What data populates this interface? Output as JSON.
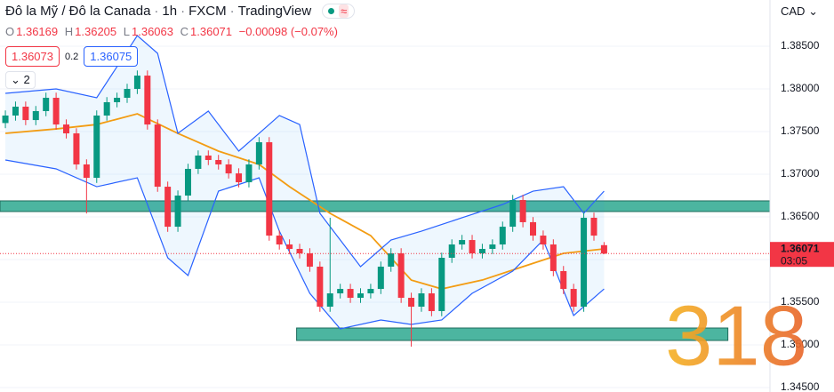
{
  "chart_data": {
    "type": "candlestick",
    "header": {
      "symbol": "Đô la Mỹ / Đô la Canada",
      "interval": "1h",
      "source": "FXCM",
      "platform": "TradingView",
      "badge": "≈",
      "ohlc_labels": [
        "O",
        "H",
        "L",
        "C"
      ],
      "change": "−0.00098 (−0.07%)",
      "sell": "1.36073",
      "spread": "0.2",
      "buy": "1.36075",
      "indicators": "2"
    },
    "currency": "CAD",
    "countdown": "03:05",
    "watermark": "318",
    "xlim": [
      -0.53,
      75.35
    ],
    "ylim": [
      1.34448,
      1.39042
    ],
    "yticks": [
      {
        "value": 1.385,
        "label": "1.38500"
      },
      {
        "value": 1.38,
        "label": "1.38000"
      },
      {
        "value": 1.375,
        "label": "1.37500"
      },
      {
        "value": 1.37,
        "label": "1.37000"
      },
      {
        "value": 1.365,
        "label": "1.36500"
      },
      {
        "value": 1.36,
        "label": "1.36000"
      },
      {
        "value": 1.355,
        "label": "1.35500"
      },
      {
        "value": 1.35,
        "label": "1.35000"
      },
      {
        "value": 1.345,
        "label": "1.34500"
      }
    ],
    "up_color": "#089981",
    "down_color": "#f23645",
    "series": [
      {
        "name": "USDCAD",
        "open": [
          1.376,
          1.37688,
          1.37792,
          1.37635,
          1.3774,
          1.37896,
          1.37583,
          1.37479,
          1.37115,
          1.36958,
          1.37688,
          1.37844,
          1.37896,
          1.38,
          1.38156,
          1.37583,
          1.36854,
          1.36385,
          1.3675,
          1.37063,
          1.37219,
          1.37167,
          1.37115,
          1.3701,
          1.36906,
          1.37115,
          1.37375,
          1.36281,
          1.36177,
          1.36125,
          1.36073,
          1.35917,
          1.35448,
          1.35604,
          1.35656,
          1.35552,
          1.35604,
          1.35656,
          1.35917,
          1.36073,
          1.35552,
          1.35448,
          1.35604,
          1.35396,
          1.36021,
          1.36177,
          1.36229,
          1.36073,
          1.36125,
          1.36177,
          1.36385,
          1.36698,
          1.36438,
          1.36281,
          1.36177,
          1.35865,
          1.35656,
          1.35448,
          1.3649,
          1.36169
        ],
        "high": [
          1.37748,
          1.37852,
          1.37852,
          1.378,
          1.37956,
          1.37956,
          1.37643,
          1.37539,
          1.37175,
          1.37748,
          1.37904,
          1.37956,
          1.3806,
          1.38216,
          1.38216,
          1.37643,
          1.36914,
          1.3681,
          1.37123,
          1.37279,
          1.37279,
          1.37227,
          1.37175,
          1.3707,
          1.37175,
          1.37435,
          1.37435,
          1.36341,
          1.36237,
          1.36185,
          1.36133,
          1.35977,
          1.3649,
          1.35716,
          1.35716,
          1.35664,
          1.35716,
          1.35977,
          1.36133,
          1.36133,
          1.35612,
          1.35664,
          1.35664,
          1.36081,
          1.36237,
          1.36289,
          1.36289,
          1.36185,
          1.36237,
          1.36445,
          1.36758,
          1.36758,
          1.36498,
          1.36341,
          1.36237,
          1.35925,
          1.35716,
          1.3655,
          1.3655,
          1.36205
        ],
        "low": [
          1.3754,
          1.37628,
          1.37575,
          1.37575,
          1.3768,
          1.37523,
          1.37419,
          1.37055,
          1.3654,
          1.36898,
          1.37628,
          1.37784,
          1.37836,
          1.3794,
          1.37523,
          1.36794,
          1.36325,
          1.36325,
          1.3669,
          1.37003,
          1.37107,
          1.37055,
          1.3695,
          1.36846,
          1.36846,
          1.37055,
          1.36221,
          1.36117,
          1.36065,
          1.36013,
          1.35857,
          1.35388,
          1.35388,
          1.35544,
          1.35492,
          1.35492,
          1.35544,
          1.35596,
          1.35857,
          1.35492,
          1.3498,
          1.35388,
          1.35336,
          1.35336,
          1.35961,
          1.36117,
          1.36013,
          1.36013,
          1.36065,
          1.36117,
          1.36325,
          1.36378,
          1.36221,
          1.36117,
          1.35805,
          1.35596,
          1.35388,
          1.35388,
          1.36221,
          1.36063
        ],
        "close": [
          1.37688,
          1.37792,
          1.37635,
          1.3774,
          1.37896,
          1.37583,
          1.37479,
          1.37115,
          1.36958,
          1.37688,
          1.37844,
          1.37896,
          1.38,
          1.38156,
          1.37583,
          1.36854,
          1.36385,
          1.3675,
          1.37063,
          1.37219,
          1.37167,
          1.37115,
          1.3701,
          1.36906,
          1.37115,
          1.37375,
          1.36281,
          1.36177,
          1.36125,
          1.36073,
          1.35917,
          1.35448,
          1.35604,
          1.35656,
          1.35552,
          1.35604,
          1.35656,
          1.35917,
          1.36073,
          1.35552,
          1.35448,
          1.35604,
          1.35396,
          1.36021,
          1.36177,
          1.36229,
          1.36073,
          1.36125,
          1.36177,
          1.36385,
          1.36698,
          1.36438,
          1.36281,
          1.36177,
          1.35865,
          1.35656,
          1.35448,
          1.3649,
          1.36281,
          1.36071
        ]
      }
    ],
    "lines": [
      {
        "color": "#f39c12",
        "x": [
          0,
          5,
          9,
          13,
          17,
          21,
          25,
          28,
          32,
          36,
          40,
          43,
          47,
          51,
          55,
          59
        ],
        "values": [
          1.37479,
          1.37531,
          1.37583,
          1.37708,
          1.37479,
          1.37271,
          1.37115,
          1.36854,
          1.36542,
          1.36281,
          1.3576,
          1.35656,
          1.3576,
          1.35917,
          1.36073,
          1.36125
        ]
      },
      {
        "color": "#2962ff",
        "x": [
          0,
          5,
          9,
          13,
          15,
          17,
          20,
          23,
          25,
          27,
          29,
          31,
          35,
          38,
          41,
          45,
          49,
          52,
          55,
          57,
          59
        ],
        "values": [
          1.37948,
          1.38,
          1.37896,
          1.38625,
          1.38417,
          1.37479,
          1.3774,
          1.37271,
          1.37479,
          1.37688,
          1.37583,
          1.36542,
          1.35917,
          1.36229,
          1.36333,
          1.3649,
          1.36646,
          1.36802,
          1.36854,
          1.36542,
          1.36802
        ]
      },
      {
        "color": "#2962ff",
        "x": [
          0,
          5,
          9,
          13,
          16,
          18,
          21,
          25,
          27,
          30,
          33,
          37,
          40,
          43,
          46,
          50,
          53,
          56,
          59
        ],
        "values": [
          1.37167,
          1.37063,
          1.36854,
          1.36958,
          1.36021,
          1.35813,
          1.36802,
          1.36958,
          1.36333,
          1.35604,
          1.35188,
          1.35292,
          1.3524,
          1.35292,
          1.35604,
          1.35865,
          1.36229,
          1.35344,
          1.35656
        ]
      }
    ],
    "zones": [
      {
        "x": [
          -0.53,
          75.35
        ],
        "values": [
          1.36563,
          1.36688
        ]
      },
      {
        "x": [
          28.7,
          71.2
        ],
        "values": [
          1.35052,
          1.35198
        ]
      }
    ],
    "zone_color": "#4cb5a0"
  }
}
